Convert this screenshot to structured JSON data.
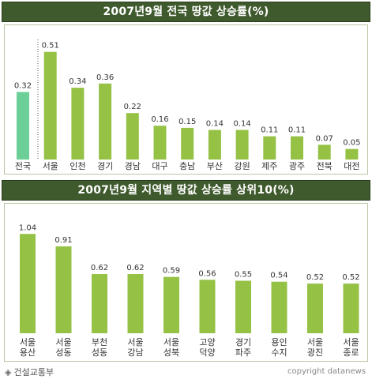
{
  "chart_data": [
    {
      "type": "bar",
      "title": "2007년9월 전국 땅값 상승률(%)",
      "categories": [
        "전국",
        "서울",
        "인천",
        "경기",
        "경남",
        "대구",
        "충남",
        "부산",
        "강원",
        "제주",
        "광주",
        "전북",
        "대전"
      ],
      "values": [
        0.32,
        0.51,
        0.34,
        0.36,
        0.22,
        0.16,
        0.15,
        0.14,
        0.14,
        0.11,
        0.11,
        0.07,
        0.05
      ],
      "value_labels": [
        "0.32",
        "0.51",
        "0.34",
        "0.36",
        "0.22",
        "0.16",
        "0.15",
        "0.14",
        "0.14",
        "0.11",
        "0.11",
        "0.07",
        "0.05"
      ],
      "ylim": [
        0,
        0.55
      ],
      "grid": false,
      "colors": {
        "highlight": "#6ccf98",
        "bar": "#95c144"
      }
    },
    {
      "type": "bar",
      "title": "2007년9월 지역별 땅값 상승률 상위10(%)",
      "categories": [
        "서울\n용산",
        "서울\n성동",
        "부천\n성동",
        "서울\n강남",
        "서울\n성북",
        "고양\n덕양",
        "경기\n파주",
        "용인\n수지",
        "서울\n광진",
        "서울\n종로"
      ],
      "values": [
        1.04,
        0.91,
        0.62,
        0.62,
        0.59,
        0.56,
        0.55,
        0.54,
        0.52,
        0.52
      ],
      "value_labels": [
        "1.04",
        "0.91",
        "0.62",
        "0.62",
        "0.59",
        "0.56",
        "0.55",
        "0.54",
        "0.52",
        "0.52"
      ],
      "ylim": [
        0,
        1.1
      ],
      "grid": false,
      "colors": {
        "bar": "#95c144"
      }
    }
  ],
  "footer": {
    "source": "건설교통부",
    "copyright": "copyright datanews"
  }
}
